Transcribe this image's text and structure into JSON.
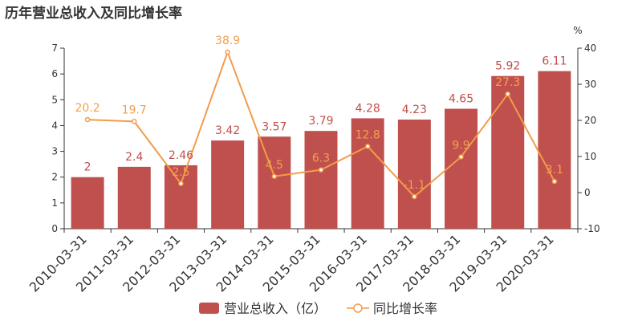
{
  "title": "历年营业总收入及同比增长率",
  "colors": {
    "bar": "#c0504d",
    "line": "#f29c4a",
    "axis": "#333333"
  },
  "chart_data": {
    "type": "bar",
    "categories": [
      "2010-03-31",
      "2011-03-31",
      "2012-03-31",
      "2013-03-31",
      "2014-03-31",
      "2015-03-31",
      "2016-03-31",
      "2017-03-31",
      "2018-03-31",
      "2019-03-31",
      "2020-03-31"
    ],
    "series": [
      {
        "name": "营业总收入（亿）",
        "type": "bar",
        "axis": "left",
        "values": [
          2,
          2.4,
          2.46,
          3.42,
          3.57,
          3.79,
          4.28,
          4.23,
          4.65,
          5.92,
          6.11
        ],
        "labels": [
          "2",
          "2.4",
          "2.46",
          "3.42",
          "3.57",
          "3.79",
          "4.28",
          "4.23",
          "4.65",
          "5.92",
          "6.11"
        ]
      },
      {
        "name": "同比增长率",
        "type": "line",
        "axis": "right",
        "values": [
          20.2,
          19.7,
          2.5,
          38.9,
          4.5,
          6.3,
          12.8,
          -1.1,
          9.9,
          27.3,
          3.1
        ],
        "labels": [
          "20.2",
          "19.7",
          "2.5",
          "38.9",
          "4.5",
          "6.3",
          "12.8",
          "-1.1",
          "9.9",
          "27.3",
          "3.1"
        ]
      }
    ],
    "y_left": {
      "range": [
        0,
        7
      ],
      "ticks": [
        "0",
        "1",
        "2",
        "3",
        "4",
        "5",
        "6",
        "7"
      ]
    },
    "y_right": {
      "unit": "%",
      "range": [
        -10,
        40
      ],
      "ticks": [
        "-10",
        "0",
        "10",
        "20",
        "30",
        "40"
      ]
    },
    "grid": false,
    "legend_position": "bottom-center"
  }
}
